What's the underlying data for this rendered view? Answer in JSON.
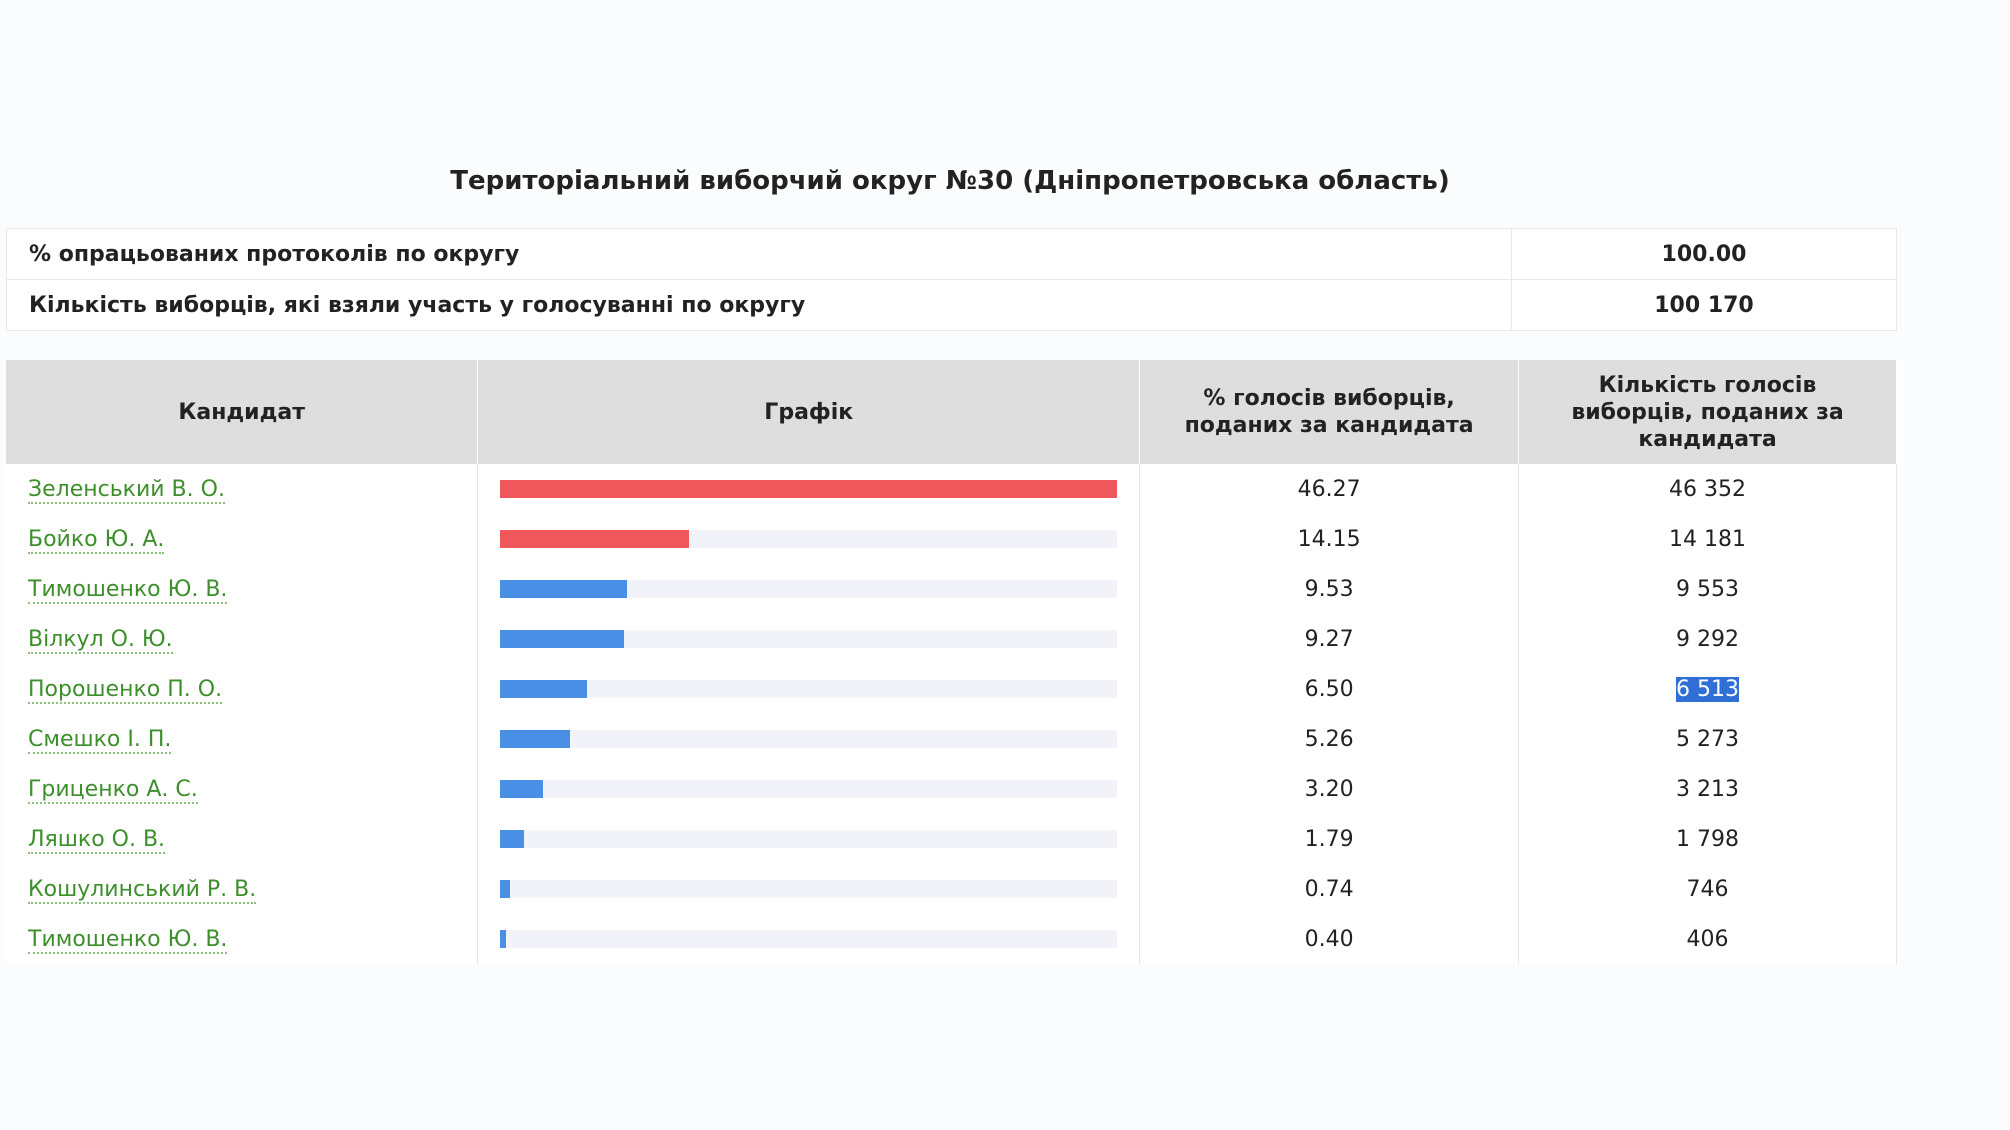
{
  "title": "Територіальний виборчий округ №30 (Дніпропетровська область)",
  "summary": [
    {
      "label": "% опрацьованих протоколів по округу",
      "value": "100.00"
    },
    {
      "label": "Кількість виборців, які взяли участь у голосуванні по округу",
      "value": "100 170"
    }
  ],
  "table": {
    "headers": [
      "Кандидат",
      "Графік",
      "% голосів виборців, поданих за кандидата",
      "Кількість голосів виборців, поданих за кандидата"
    ],
    "rows": [
      {
        "candidate": "Зеленський В. О.",
        "percent": {
          "value": 46.27,
          "label": "46.27"
        },
        "votes": "46 352",
        "bar_color": "#f0575c"
      },
      {
        "candidate": "Бойко Ю. А.",
        "percent": {
          "value": 14.15,
          "label": "14.15"
        },
        "votes": "14 181",
        "bar_color": "#f0575c"
      },
      {
        "candidate": "Тимошенко Ю. В.",
        "percent": {
          "value": 9.53,
          "label": "9.53"
        },
        "votes": "9 553",
        "bar_color": "#4a8fe6"
      },
      {
        "candidate": "Вілкул О. Ю.",
        "percent": {
          "value": 9.27,
          "label": "9.27"
        },
        "votes": "9 292",
        "bar_color": "#4a8fe6"
      },
      {
        "candidate": "Порошенко П. О.",
        "percent": {
          "value": 6.5,
          "label": "6.50"
        },
        "votes": "6 513",
        "bar_color": "#4a8fe6",
        "votes_selected": true
      },
      {
        "candidate": "Смешко І. П.",
        "percent": {
          "value": 5.26,
          "label": "5.26"
        },
        "votes": "5 273",
        "bar_color": "#4a8fe6"
      },
      {
        "candidate": "Гриценко А. С.",
        "percent": {
          "value": 3.2,
          "label": "3.20"
        },
        "votes": "3 213",
        "bar_color": "#4a8fe6"
      },
      {
        "candidate": "Ляшко О. В.",
        "percent": {
          "value": 1.79,
          "label": "1.79"
        },
        "votes": "1 798",
        "bar_color": "#4a8fe6"
      },
      {
        "candidate": "Кошулинський Р. В.",
        "percent": {
          "value": 0.74,
          "label": "0.74"
        },
        "votes": "746",
        "bar_color": "#4a8fe6"
      },
      {
        "candidate": "Тимошенко Ю. В.",
        "percent": {
          "value": 0.4,
          "label": "0.40"
        },
        "votes": "406",
        "bar_color": "#4a8fe6"
      }
    ]
  }
}
